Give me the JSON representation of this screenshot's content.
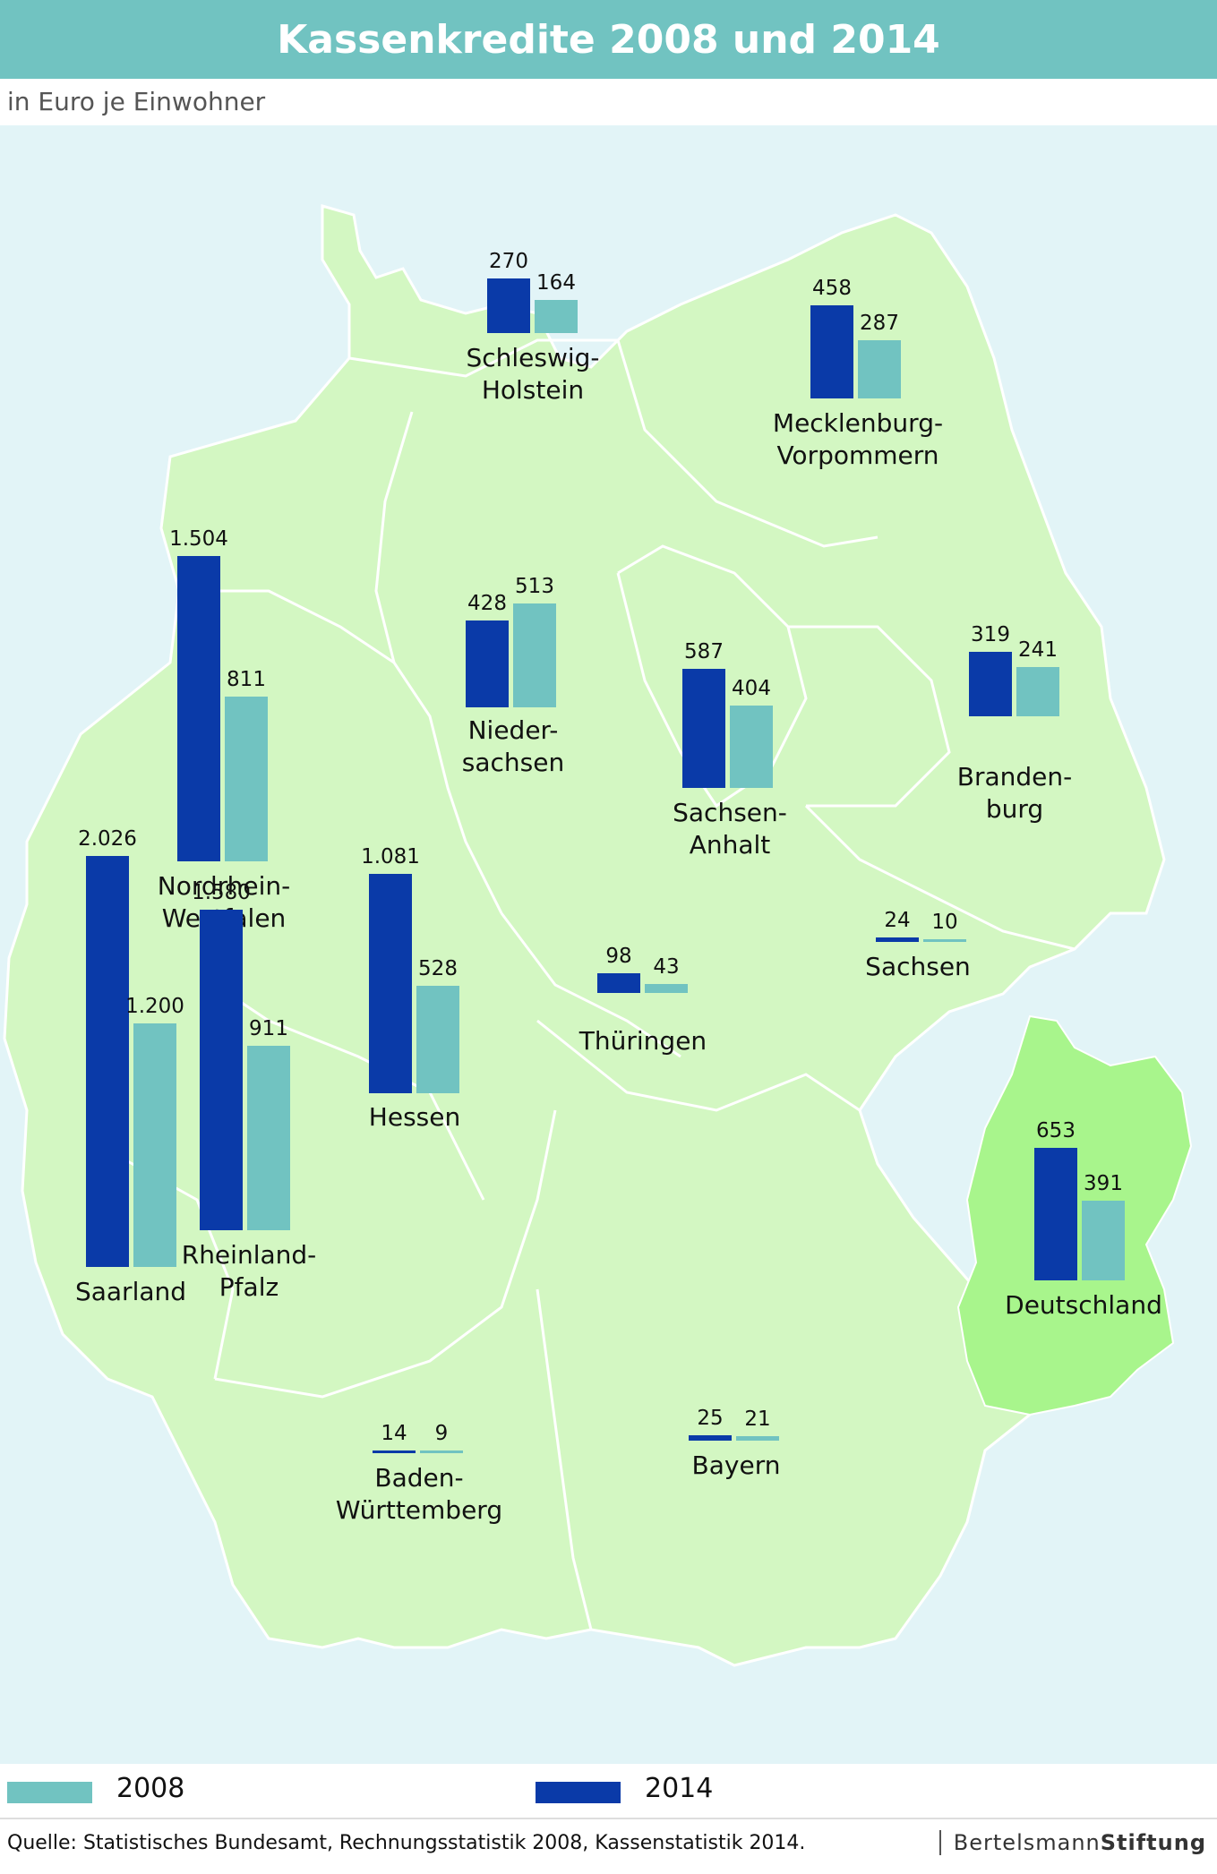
{
  "title": "Kassenkredite 2008 und 2014",
  "subtitle": "in Euro je Einwohner",
  "colors": {
    "y2014": "#0a3aa8",
    "y2008": "#71c3c1",
    "map_fill": "#d3f7c2",
    "germany_fill": "#a8f58c",
    "border": "#ffffff",
    "water": "#e2f4f7"
  },
  "legend": {
    "items": [
      {
        "label": "2008",
        "color": "#71c3c1"
      },
      {
        "label": "2014",
        "color": "#0a3aa8"
      }
    ]
  },
  "chart_data": {
    "type": "bar",
    "series_order": [
      "2014",
      "2008"
    ],
    "regions": [
      {
        "name": "Schleswig-Holstein",
        "v2014": 270,
        "l2014": "270",
        "v2008": 164,
        "l2008": "164"
      },
      {
        "name": "Mecklenburg-Vorpommern",
        "v2014": 458,
        "l2014": "458",
        "v2008": 287,
        "l2008": "287"
      },
      {
        "name": "Niedersachsen",
        "v2014": 428,
        "l2014": "428",
        "v2008": 513,
        "l2008": "513"
      },
      {
        "name": "Nordrhein-Westfalen",
        "v2014": 1504,
        "l2014": "1.504",
        "v2008": 811,
        "l2008": "811"
      },
      {
        "name": "Sachsen-Anhalt",
        "v2014": 587,
        "l2014": "587",
        "v2008": 404,
        "l2008": "404"
      },
      {
        "name": "Brandenburg",
        "v2014": 319,
        "l2014": "319",
        "v2008": 241,
        "l2008": "241"
      },
      {
        "name": "Sachsen",
        "v2014": 24,
        "l2014": "24",
        "v2008": 10,
        "l2008": "10"
      },
      {
        "name": "Hessen",
        "v2014": 1081,
        "l2014": "1.081",
        "v2008": 528,
        "l2008": "528"
      },
      {
        "name": "Thüringen",
        "v2014": 98,
        "l2014": "98",
        "v2008": 43,
        "l2008": "43"
      },
      {
        "name": "Saarland",
        "v2014": 2026,
        "l2014": "2.026",
        "v2008": 1200,
        "l2008": "1.200"
      },
      {
        "name": "Rheinland-Pfalz",
        "v2014": 1580,
        "l2014": "1.580",
        "v2008": 911,
        "l2008": "911"
      },
      {
        "name": "Baden-Württemberg",
        "v2014": 14,
        "l2014": "14",
        "v2008": 9,
        "l2008": "9"
      },
      {
        "name": "Bayern",
        "v2014": 25,
        "l2014": "25",
        "v2008": 21,
        "l2008": "21"
      },
      {
        "name": "Deutschland",
        "v2014": 653,
        "l2014": "653",
        "v2008": 391,
        "l2008": "391"
      }
    ]
  },
  "region_labels": [
    "Schleswig-\nHolstein",
    "Mecklenburg-\nVorpommern",
    "Nieder-\nsachsen",
    "Nordrhein-\nWestfalen",
    "Sachsen-\nAnhalt",
    "Branden-\nburg",
    "Sachsen",
    "Hessen",
    "Thüringen",
    "Saarland",
    "Rheinland-\nPfalz",
    "Baden-\nWürttemberg",
    "Bayern",
    "Deutschland"
  ],
  "footer": {
    "source": "Quelle: Statistisches Bundesamt, Rechnungsstatistik 2008, Kassenstatistik 2014.",
    "brand_regular": "Bertelsmann",
    "brand_bold": "Stiftung"
  }
}
